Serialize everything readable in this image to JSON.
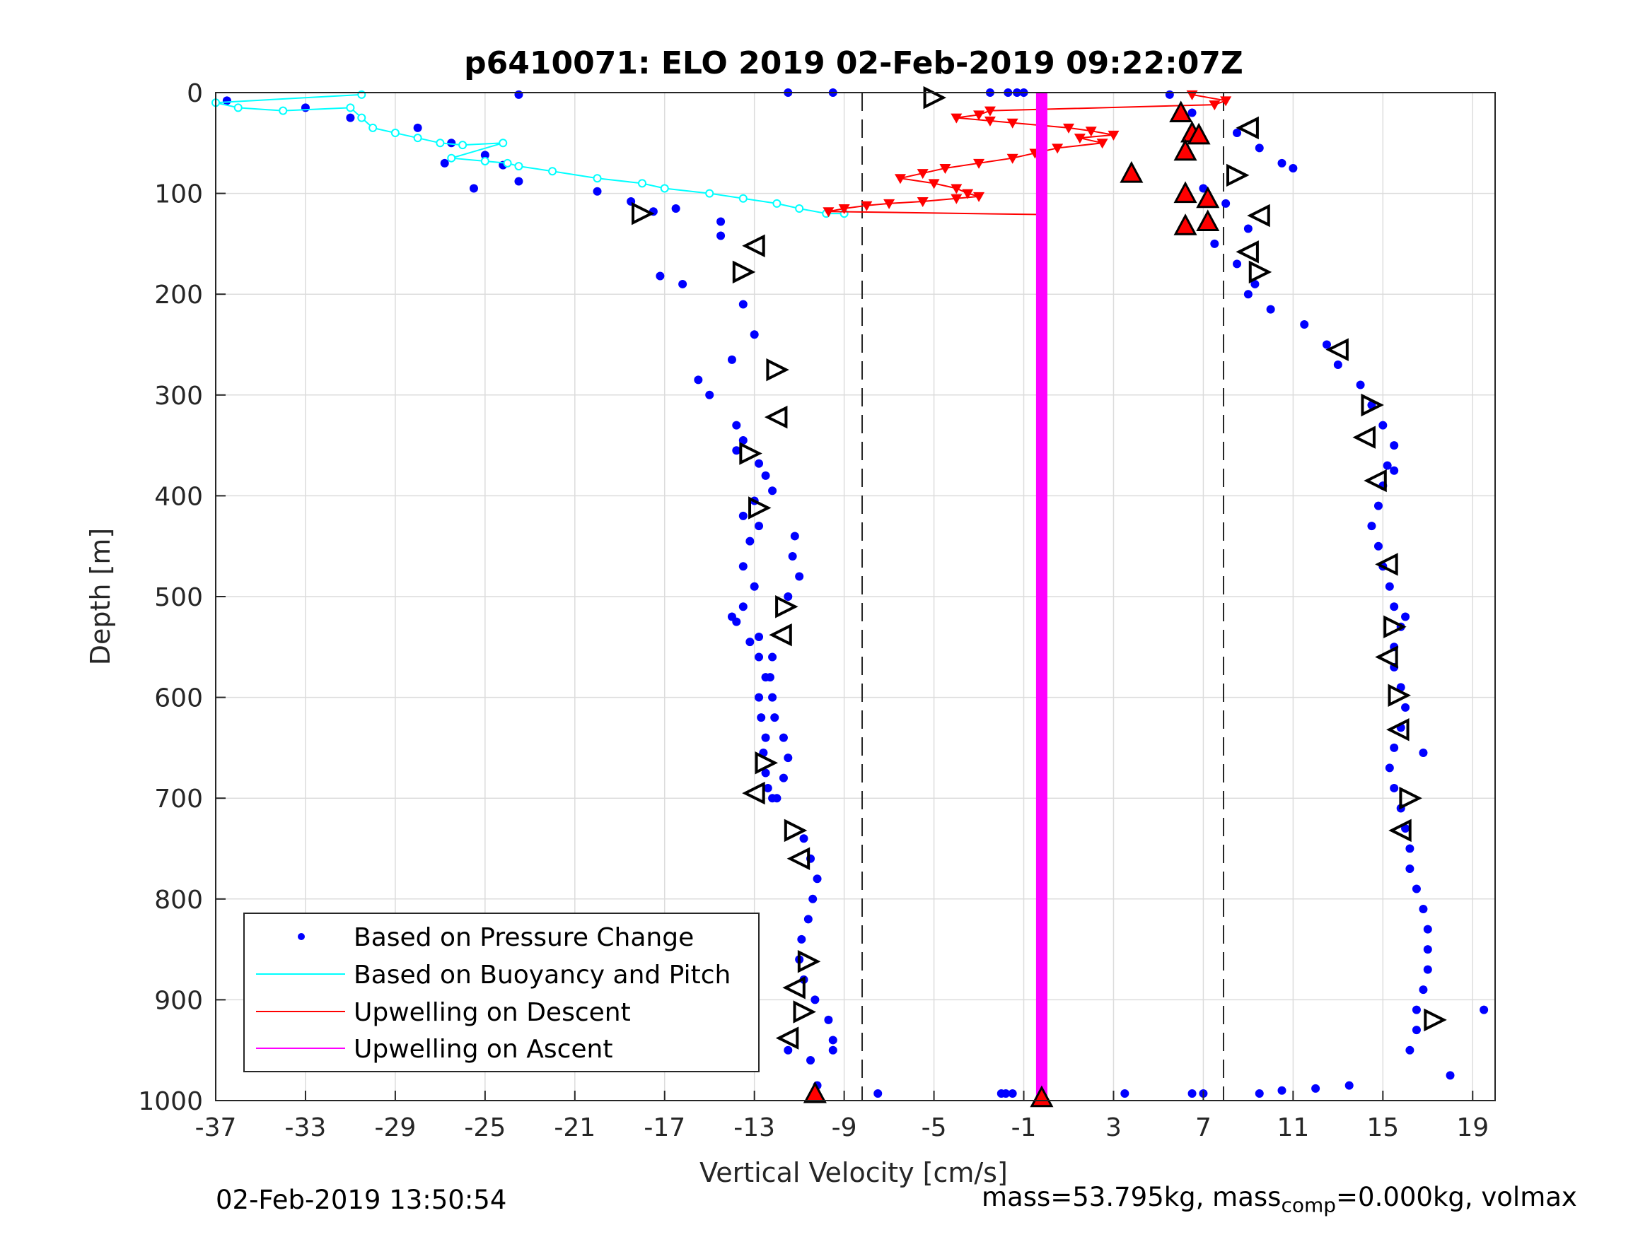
{
  "chart_data": {
    "type": "scatter",
    "title": "p6410071: ELO 2019 02-Feb-2019 09:22:07Z",
    "xlabel": "Vertical Velocity [cm/s]",
    "ylabel": "Depth [m]",
    "xlim": [
      -37,
      20
    ],
    "ylim": [
      0,
      1000
    ],
    "y_reversed": true,
    "x_ticks": [
      "-37",
      "-33",
      "-29",
      "-25",
      "-21",
      "-17",
      "-13",
      "-9",
      "-5",
      "-1",
      "3",
      "7",
      "11",
      "15",
      "19"
    ],
    "y_ticks": [
      "0",
      "100",
      "200",
      "300",
      "400",
      "500",
      "600",
      "700",
      "800",
      "900",
      "1000"
    ],
    "grid": true,
    "reference_lines_x": [
      -8.2,
      7.9
    ],
    "legend_position": "bottom-left",
    "legend": [
      {
        "label": "Based on Pressure Change",
        "color": "#0000ff",
        "style": "dot"
      },
      {
        "label": "Based on Buoyancy and Pitch",
        "color": "#00ffff",
        "style": "line"
      },
      {
        "label": "Upwelling on Descent",
        "color": "#ff0000",
        "style": "line"
      },
      {
        "label": "Upwelling on Ascent",
        "color": "#ff00ff",
        "style": "line"
      }
    ],
    "series": [
      {
        "name": "Based on Pressure Change (descent)",
        "color": "#0000ff",
        "x": [
          -23.5,
          -36.5,
          -33,
          -31,
          -28,
          -26.5,
          -25,
          -24.2,
          -26.8,
          -23.5,
          -25.5,
          -20,
          -18.5,
          -16.5,
          -14.5,
          -17.5,
          -14.5,
          -17.2,
          -16.2,
          -13.5,
          -13,
          -14,
          -15.5,
          -15,
          -13.8,
          -13.5,
          -13.8,
          -12.8,
          -12.5,
          -12.2,
          -13,
          -13.5,
          -12.8,
          -13.2,
          -13.5,
          -13,
          -13.5,
          -13.8,
          -13.2,
          -12.8,
          -12.3,
          -12.2,
          -12.1,
          -11.7,
          -11.5,
          -11.7,
          -12,
          -12.2,
          -12.4,
          -12.5,
          -12.6,
          -12.5,
          -12.7,
          -12.8,
          -12.5,
          -12.2,
          -12.8,
          -14,
          -11.5,
          -11,
          -11.3,
          -11.2,
          -10.8,
          -10.5,
          -10.2,
          -10.4,
          -10.6,
          -10.9,
          -11,
          -10.8,
          -10.3,
          -9.7,
          -9.5,
          -11.5,
          -10.5,
          -10.2
        ],
        "y": [
          2,
          8,
          15,
          25,
          35,
          50,
          62,
          72,
          70,
          88,
          95,
          98,
          108,
          115,
          128,
          118,
          142,
          182,
          190,
          210,
          240,
          265,
          285,
          300,
          330,
          345,
          355,
          368,
          380,
          395,
          405,
          420,
          430,
          445,
          470,
          490,
          510,
          525,
          545,
          560,
          580,
          600,
          620,
          640,
          660,
          680,
          700,
          700,
          690,
          675,
          655,
          640,
          620,
          600,
          580,
          560,
          540,
          520,
          500,
          480,
          460,
          440,
          740,
          760,
          780,
          800,
          820,
          840,
          860,
          880,
          900,
          920,
          940,
          950,
          960,
          985
        ]
      },
      {
        "name": "Based on Pressure Change (ascent)",
        "color": "#0000ff",
        "x": [
          5.5,
          6.5,
          8.5,
          9.5,
          10.5,
          11,
          7,
          8,
          9,
          7.5,
          8.5,
          9.3,
          9,
          10,
          11.5,
          12.5,
          13,
          14,
          14.5,
          15,
          15.5,
          15.2,
          15,
          14.8,
          14.5,
          14.8,
          15,
          15.3,
          15.5,
          15.8,
          15.5,
          15.5,
          15.8,
          16,
          15.8,
          15.5,
          15.3,
          15.5,
          15.8,
          16,
          16.2,
          16.2,
          16.5,
          16.8,
          17,
          17,
          17,
          16.8,
          16.5,
          16.5,
          16.2,
          19.5,
          18,
          7,
          9.5,
          10.5,
          12,
          13.5,
          15.5,
          16,
          16.8
        ],
        "y": [
          2,
          20,
          40,
          55,
          70,
          75,
          95,
          110,
          135,
          150,
          170,
          190,
          200,
          215,
          230,
          250,
          270,
          290,
          310,
          330,
          350,
          370,
          390,
          410,
          430,
          450,
          470,
          490,
          510,
          530,
          550,
          570,
          590,
          610,
          630,
          650,
          670,
          690,
          710,
          730,
          750,
          770,
          790,
          810,
          830,
          850,
          870,
          890,
          910,
          930,
          950,
          910,
          975,
          993,
          993,
          990,
          988,
          985,
          375,
          520,
          655
        ]
      },
      {
        "name": "Based on Pressure Change (surface/bottom)",
        "color": "#0000ff",
        "x": [
          -11.5,
          -9.5,
          -2.5,
          -1.7,
          -1.3,
          -1,
          -1.8,
          3.5,
          6.5,
          -9.5,
          -7.5,
          -2,
          -1.5
        ],
        "y": [
          0,
          0,
          0,
          0,
          0,
          0,
          993,
          993,
          993,
          950,
          993,
          993,
          993
        ]
      },
      {
        "name": "Based on Buoyancy and Pitch",
        "color": "#00ffff",
        "x": [
          -30.5,
          -37,
          -36,
          -34,
          -31,
          -30.5,
          -30,
          -29,
          -28,
          -27,
          -26,
          -24.2,
          -26.5,
          -25,
          -24,
          -23.5,
          -22,
          -20,
          -18,
          -17,
          -15,
          -13.5,
          -12,
          -11,
          -9.8,
          -9
        ],
        "y": [
          2,
          10,
          15,
          18,
          15,
          25,
          35,
          40,
          45,
          50,
          52,
          50,
          65,
          68,
          70,
          73,
          78,
          85,
          90,
          95,
          100,
          105,
          110,
          115,
          120,
          120
        ]
      },
      {
        "name": "Upwelling on Descent",
        "color": "#ff0000",
        "x": [
          6.5,
          8,
          7.5,
          -2.5,
          -3,
          -4,
          -2.5,
          -1.5,
          1,
          2,
          3,
          1.5,
          2.5,
          0.5,
          -0.5,
          -1.5,
          -3,
          -4.5,
          -5.5,
          -6.5,
          -5,
          -4,
          -3.5,
          -3,
          -4,
          -5.5,
          -7,
          -8,
          -9,
          -9.7,
          -0.2
        ],
        "y": [
          2,
          8,
          12,
          18,
          22,
          25,
          28,
          30,
          35,
          38,
          42,
          45,
          50,
          55,
          60,
          65,
          70,
          75,
          80,
          85,
          90,
          95,
          100,
          103,
          105,
          108,
          110,
          112,
          115,
          118,
          121
        ]
      },
      {
        "name": "Upwelling on Ascent",
        "color": "#ff00ff",
        "x": [
          -0.2,
          -0.2
        ],
        "y": [
          0,
          1000
        ]
      }
    ],
    "markers_red_triangle": [
      {
        "x": 6,
        "y": 20
      },
      {
        "x": 6.5,
        "y": 40
      },
      {
        "x": 6.8,
        "y": 42
      },
      {
        "x": 6.2,
        "y": 58
      },
      {
        "x": 3.8,
        "y": 80
      },
      {
        "x": 6.2,
        "y": 100
      },
      {
        "x": 7.2,
        "y": 105
      },
      {
        "x": 7.2,
        "y": 128
      },
      {
        "x": 6.2,
        "y": 132
      },
      {
        "x": -10.3,
        "y": 993
      },
      {
        "x": -0.2,
        "y": 997
      }
    ],
    "markers_open_triangle": [
      {
        "x": -5,
        "y": 5
      },
      {
        "x": 9,
        "y": 35
      },
      {
        "x": 8.5,
        "y": 82
      },
      {
        "x": 9.5,
        "y": 122
      },
      {
        "x": -18,
        "y": 120
      },
      {
        "x": -13,
        "y": 152
      },
      {
        "x": -13.5,
        "y": 178
      },
      {
        "x": 9,
        "y": 158
      },
      {
        "x": 9.5,
        "y": 178
      },
      {
        "x": 13,
        "y": 255
      },
      {
        "x": -12,
        "y": 275
      },
      {
        "x": -12,
        "y": 322
      },
      {
        "x": 14.5,
        "y": 310
      },
      {
        "x": 14.2,
        "y": 342
      },
      {
        "x": -13.2,
        "y": 358
      },
      {
        "x": 14.7,
        "y": 385
      },
      {
        "x": -12.8,
        "y": 412
      },
      {
        "x": 15.2,
        "y": 468
      },
      {
        "x": -11.6,
        "y": 510
      },
      {
        "x": -11.8,
        "y": 538
      },
      {
        "x": 15.5,
        "y": 530
      },
      {
        "x": 15.2,
        "y": 560
      },
      {
        "x": 15.7,
        "y": 598
      },
      {
        "x": 15.7,
        "y": 632
      },
      {
        "x": -12.5,
        "y": 665
      },
      {
        "x": -13,
        "y": 695
      },
      {
        "x": 16.2,
        "y": 700
      },
      {
        "x": 15.8,
        "y": 732
      },
      {
        "x": -11.2,
        "y": 732
      },
      {
        "x": -11,
        "y": 760
      },
      {
        "x": -10.6,
        "y": 862
      },
      {
        "x": -11.2,
        "y": 888
      },
      {
        "x": -10.8,
        "y": 912
      },
      {
        "x": -11.5,
        "y": 938
      },
      {
        "x": 17.3,
        "y": 920
      }
    ]
  },
  "footer": {
    "timestamp": "02-Feb-2019 13:50:54",
    "mass_prefix": "mass=53.795kg, mass",
    "mass_sub": "comp",
    "mass_suffix": "=0.000kg, volmax"
  }
}
